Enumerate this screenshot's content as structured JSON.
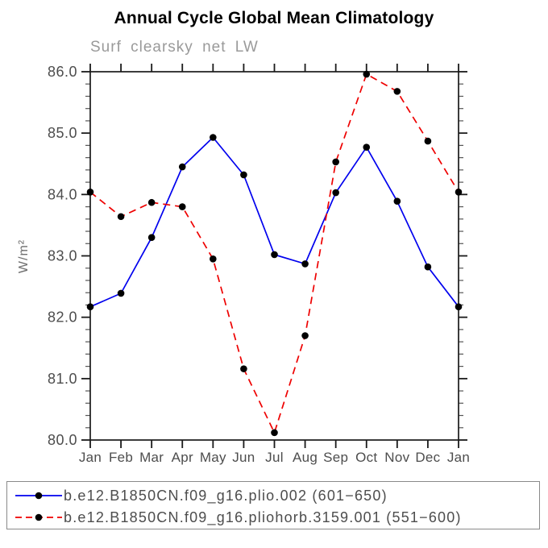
{
  "title": "Annual Cycle Global Mean Climatology",
  "subtitle": "Surf clearsky net LW",
  "ylabel": "W/m²",
  "chart_data": {
    "type": "line",
    "x_categories": [
      "Jan",
      "Feb",
      "Mar",
      "Apr",
      "May",
      "Jun",
      "Jul",
      "Aug",
      "Sep",
      "Oct",
      "Nov",
      "Dec",
      "Jan"
    ],
    "xlabel": "",
    "ylabel": "W/m²",
    "ylim": [
      80.0,
      86.0
    ],
    "y_tick_labels": [
      "80.0",
      "81.0",
      "82.0",
      "83.0",
      "84.0",
      "85.0",
      "86.0"
    ],
    "y_minor_step": 0.2,
    "grid": false,
    "legend_position": "bottom",
    "frame_color": "#1a1a1a",
    "tick_label_color": "#4d4d4d",
    "marker_color": "#000000",
    "series": [
      {
        "name": "b.e12.B1850CN.f09_g16.plio.002 (601−650)",
        "color": "#0000ee",
        "style": "solid",
        "marker": "filled-circle",
        "values": [
          82.17,
          82.39,
          83.3,
          84.45,
          84.93,
          84.32,
          83.02,
          82.87,
          84.03,
          84.77,
          83.89,
          82.82,
          82.17
        ]
      },
      {
        "name": "b.e12.B1850CN.f09_g16.pliohorb.3159.001 (551−600)",
        "color": "#ee0000",
        "style": "dashed",
        "marker": "filled-circle",
        "values": [
          84.04,
          83.64,
          83.87,
          83.8,
          82.95,
          81.16,
          80.12,
          81.7,
          84.53,
          85.96,
          85.68,
          84.87,
          84.04
        ]
      }
    ]
  }
}
